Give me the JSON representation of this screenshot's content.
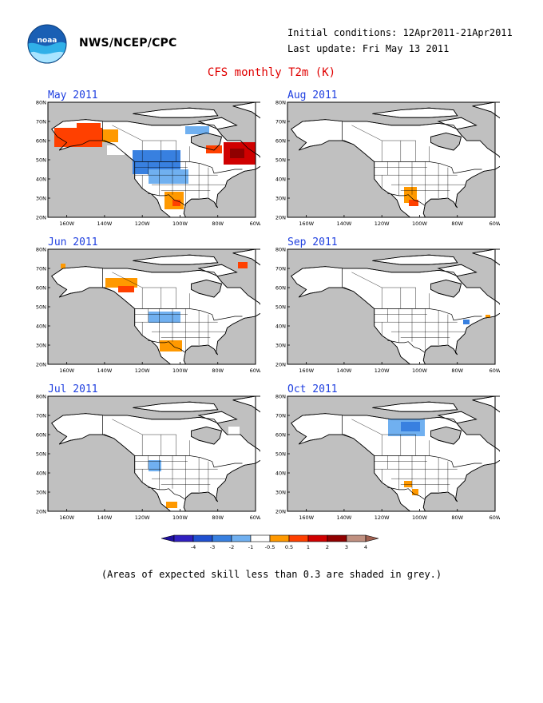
{
  "header": {
    "org_name": "NWS/NCEP/CPC",
    "initial_conditions": "Initial conditions: 12Apr2011-21Apr2011",
    "last_update": "Last update: Fri May 13 2011",
    "logo_icon": "noaa-logo-icon"
  },
  "title": "CFS monthly T2m (K)",
  "axes": {
    "y_ticks": [
      "80N",
      "70N",
      "60N",
      "50N",
      "40N",
      "30N",
      "20N"
    ],
    "x_ticks": [
      "160W",
      "140W",
      "120W",
      "100W",
      "80W",
      "60W"
    ]
  },
  "panels": [
    {
      "title": "May 2011"
    },
    {
      "title": "Aug 2011"
    },
    {
      "title": "Jun 2011"
    },
    {
      "title": "Sep 2011"
    },
    {
      "title": "Jul 2011"
    },
    {
      "title": "Oct 2011"
    }
  ],
  "colorbar": {
    "labels": [
      "-4",
      "-3",
      "-2",
      "-1",
      "-0.5",
      "0.5",
      "1",
      "2",
      "3",
      "4"
    ],
    "colors": [
      "#3020c0",
      "#2050d0",
      "#3880e0",
      "#70b0f0",
      "#ffffff",
      "#ff9900",
      "#ff4000",
      "#d00000",
      "#900000",
      "#c09080"
    ],
    "low_end_color": "#2010a0",
    "high_end_color": "#a06050"
  },
  "map_colors": {
    "skill_mask": "#c0c0c0",
    "land": "#ffffff"
  },
  "footnote": "(Areas of expected skill less than 0.3 are shaded in grey.)"
}
